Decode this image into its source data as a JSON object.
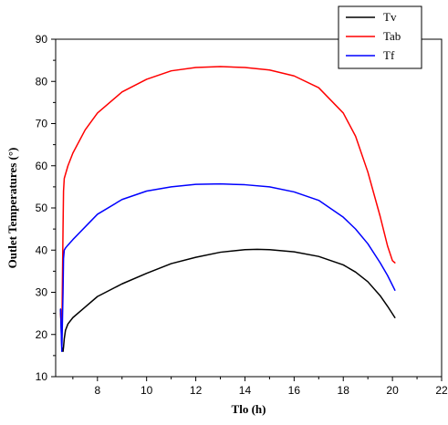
{
  "chart_data": {
    "type": "line",
    "title": "",
    "xlabel": "Tlo (h)",
    "ylabel": "Outlet Temperatures (°)",
    "xlim": [
      6.3,
      22
    ],
    "ylim": [
      10,
      90
    ],
    "xticks": [
      8,
      10,
      12,
      14,
      16,
      18,
      20,
      22
    ],
    "yticks": [
      10,
      20,
      30,
      40,
      50,
      60,
      70,
      80,
      90
    ],
    "xtick_labels": [
      "8",
      "10",
      "12",
      "14",
      "16",
      "18",
      "20",
      "22"
    ],
    "ytick_labels": [
      "10",
      "20",
      "30",
      "40",
      "50",
      "60",
      "70",
      "80",
      "90"
    ],
    "grid": false,
    "legend_position": "top-right",
    "series": [
      {
        "name": "Tv",
        "color": "#000000",
        "x": [
          6.5,
          6.55,
          6.6,
          6.62,
          6.65,
          6.7,
          6.8,
          7.0,
          7.5,
          8.0,
          9.0,
          10.0,
          11.0,
          12.0,
          13.0,
          14.0,
          14.5,
          15.0,
          16.0,
          17.0,
          18.0,
          18.5,
          19.0,
          19.5,
          19.8,
          20.1
        ],
        "y": [
          26,
          17,
          16,
          17,
          19,
          21,
          22.5,
          24,
          26.5,
          29,
          32,
          34.5,
          36.8,
          38.3,
          39.5,
          40.1,
          40.2,
          40.1,
          39.6,
          38.5,
          36.5,
          34.8,
          32.5,
          29.2,
          26.7,
          24
        ]
      },
      {
        "name": "Tab",
        "color": "#ff0000",
        "x": [
          6.5,
          6.55,
          6.6,
          6.62,
          6.65,
          6.7,
          6.8,
          7.0,
          7.5,
          8.0,
          9.0,
          10.0,
          11.0,
          12.0,
          13.0,
          14.0,
          15.0,
          16.0,
          17.0,
          18.0,
          18.5,
          19.0,
          19.5,
          19.8,
          20.0,
          20.1
        ],
        "y": [
          25,
          20,
          45,
          54,
          57,
          58,
          60,
          63,
          68.5,
          72.5,
          77.5,
          80.5,
          82.5,
          83.3,
          83.5,
          83.3,
          82.7,
          81.3,
          78.5,
          72.5,
          67,
          58.5,
          48,
          41,
          37.5,
          37
        ]
      },
      {
        "name": "Tf",
        "color": "#0000ff",
        "x": [
          6.5,
          6.55,
          6.6,
          6.62,
          6.65,
          6.7,
          6.8,
          7.0,
          7.5,
          8.0,
          9.0,
          10.0,
          11.0,
          12.0,
          13.0,
          14.0,
          15.0,
          16.0,
          17.0,
          18.0,
          18.5,
          19.0,
          19.5,
          19.8,
          20.1
        ],
        "y": [
          26,
          16,
          30,
          38,
          40,
          40.5,
          41.2,
          42.5,
          45.5,
          48.5,
          52,
          54,
          55,
          55.6,
          55.7,
          55.5,
          55,
          53.8,
          51.8,
          47.8,
          45,
          41.5,
          37,
          34,
          30.5
        ]
      }
    ]
  }
}
